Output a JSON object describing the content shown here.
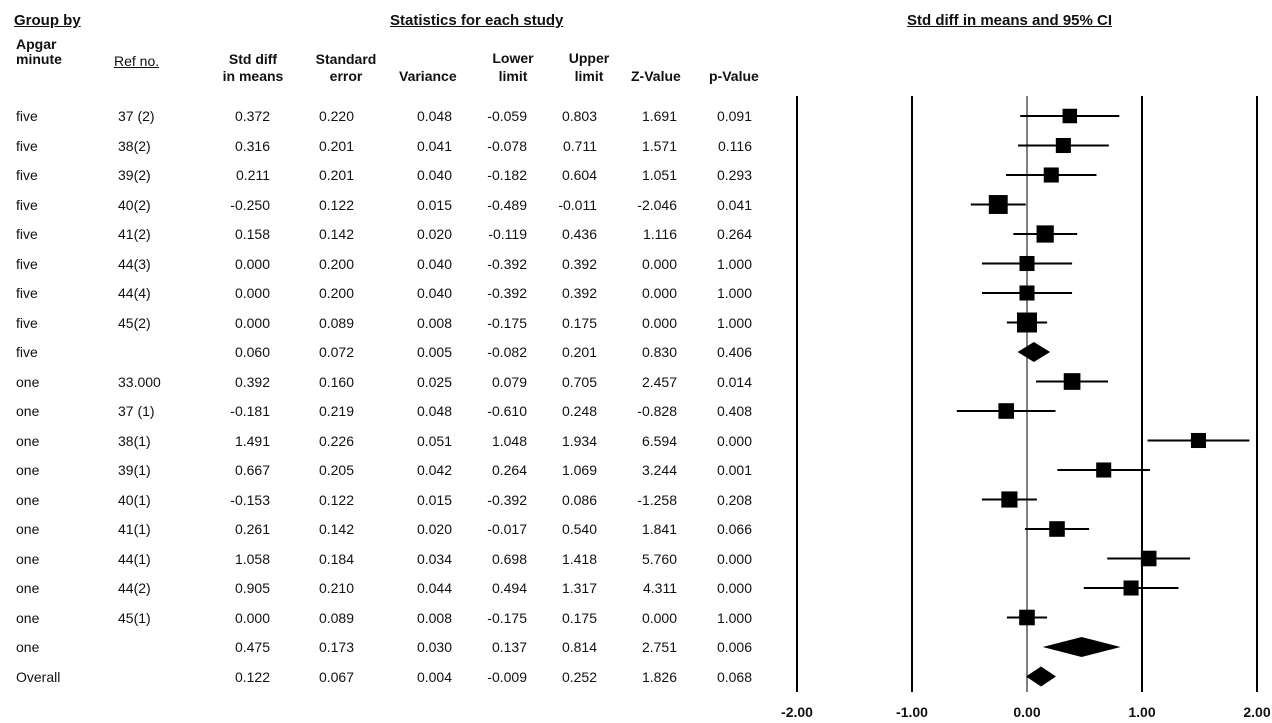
{
  "headers": {
    "group_by": "Group by",
    "stats_title": "Statistics for each study",
    "plot_title": "Std diff in means and 95% CI"
  },
  "columns": {
    "group_l1": "Apgar",
    "group_l2": "minute",
    "ref": "Ref no.",
    "smd_l1": "Std diff",
    "smd_l2": "in means",
    "se_l1": "Standard",
    "se_l2": "error",
    "var": "Variance",
    "lower_l1": "Lower",
    "lower_l2": "limit",
    "upper_l1": "Upper",
    "upper_l2": "limit",
    "z": "Z-Value",
    "p": "p-Value"
  },
  "chart_data": {
    "type": "forest",
    "xlim": [
      -2,
      2
    ],
    "xticks": [
      "-2.00",
      "-1.00",
      "0.00",
      "1.00",
      "2.00"
    ],
    "rows": [
      {
        "group": "five",
        "ref": "37 (2)",
        "smd": "0.372",
        "se": "0.220",
        "var": "0.048",
        "lower": "-0.059",
        "upper": "0.803",
        "z": "1.691",
        "p": "0.091",
        "kind": "study",
        "weight": 0.5
      },
      {
        "group": "five",
        "ref": "38(2)",
        "smd": "0.316",
        "se": "0.201",
        "var": "0.041",
        "lower": "-0.078",
        "upper": "0.711",
        "z": "1.571",
        "p": "0.116",
        "kind": "study",
        "weight": 0.55
      },
      {
        "group": "five",
        "ref": "39(2)",
        "smd": "0.211",
        "se": "0.201",
        "var": "0.040",
        "lower": "-0.182",
        "upper": "0.604",
        "z": "1.051",
        "p": "0.293",
        "kind": "study",
        "weight": 0.55
      },
      {
        "group": "five",
        "ref": "40(2)",
        "smd": "-0.250",
        "se": "0.122",
        "var": "0.015",
        "lower": "-0.489",
        "upper": "-0.011",
        "z": "-2.046",
        "p": "0.041",
        "kind": "study",
        "weight": 0.9
      },
      {
        "group": "five",
        "ref": "41(2)",
        "smd": "0.158",
        "se": "0.142",
        "var": "0.020",
        "lower": "-0.119",
        "upper": "0.436",
        "z": "1.116",
        "p": "0.264",
        "kind": "study",
        "weight": 0.75
      },
      {
        "group": "five",
        "ref": "44(3)",
        "smd": "0.000",
        "se": "0.200",
        "var": "0.040",
        "lower": "-0.392",
        "upper": "0.392",
        "z": "0.000",
        "p": "1.000",
        "kind": "study",
        "weight": 0.55
      },
      {
        "group": "five",
        "ref": "44(4)",
        "smd": "0.000",
        "se": "0.200",
        "var": "0.040",
        "lower": "-0.392",
        "upper": "0.392",
        "z": "0.000",
        "p": "1.000",
        "kind": "study",
        "weight": 0.55
      },
      {
        "group": "five",
        "ref": "45(2)",
        "smd": "0.000",
        "se": "0.089",
        "var": "0.008",
        "lower": "-0.175",
        "upper": "0.175",
        "z": "0.000",
        "p": "1.000",
        "kind": "study",
        "weight": 1.0
      },
      {
        "group": "five",
        "ref": "",
        "smd": "0.060",
        "se": "0.072",
        "var": "0.005",
        "lower": "-0.082",
        "upper": "0.201",
        "z": "0.830",
        "p": "0.406",
        "kind": "summary"
      },
      {
        "group": "one",
        "ref": "33.000",
        "smd": "0.392",
        "se": "0.160",
        "var": "0.025",
        "lower": "0.079",
        "upper": "0.705",
        "z": "2.457",
        "p": "0.014",
        "kind": "study",
        "weight": 0.7
      },
      {
        "group": "one",
        "ref": "37 (1)",
        "smd": "-0.181",
        "se": "0.219",
        "var": "0.048",
        "lower": "-0.610",
        "upper": "0.248",
        "z": "-0.828",
        "p": "0.408",
        "kind": "study",
        "weight": 0.6
      },
      {
        "group": "one",
        "ref": "38(1)",
        "smd": "1.491",
        "se": "0.226",
        "var": "0.051",
        "lower": "1.048",
        "upper": "1.934",
        "z": "6.594",
        "p": "0.000",
        "kind": "study",
        "weight": 0.55
      },
      {
        "group": "one",
        "ref": "39(1)",
        "smd": "0.667",
        "se": "0.205",
        "var": "0.042",
        "lower": "0.264",
        "upper": "1.069",
        "z": "3.244",
        "p": "0.001",
        "kind": "study",
        "weight": 0.55
      },
      {
        "group": "one",
        "ref": "40(1)",
        "smd": "-0.153",
        "se": "0.122",
        "var": "0.015",
        "lower": "-0.392",
        "upper": "0.086",
        "z": "-1.258",
        "p": "0.208",
        "kind": "study",
        "weight": 0.65
      },
      {
        "group": "one",
        "ref": "41(1)",
        "smd": "0.261",
        "se": "0.142",
        "var": "0.020",
        "lower": "-0.017",
        "upper": "0.540",
        "z": "1.841",
        "p": "0.066",
        "kind": "study",
        "weight": 0.6
      },
      {
        "group": "one",
        "ref": "44(1)",
        "smd": "1.058",
        "se": "0.184",
        "var": "0.034",
        "lower": "0.698",
        "upper": "1.418",
        "z": "5.760",
        "p": "0.000",
        "kind": "study",
        "weight": 0.6
      },
      {
        "group": "one",
        "ref": "44(2)",
        "smd": "0.905",
        "se": "0.210",
        "var": "0.044",
        "lower": "0.494",
        "upper": "1.317",
        "z": "4.311",
        "p": "0.000",
        "kind": "study",
        "weight": 0.55
      },
      {
        "group": "one",
        "ref": "45(1)",
        "smd": "0.000",
        "se": "0.089",
        "var": "0.008",
        "lower": "-0.175",
        "upper": "0.175",
        "z": "0.000",
        "p": "1.000",
        "kind": "study",
        "weight": 0.6
      },
      {
        "group": "one",
        "ref": "",
        "smd": "0.475",
        "se": "0.173",
        "var": "0.030",
        "lower": "0.137",
        "upper": "0.814",
        "z": "2.751",
        "p": "0.006",
        "kind": "summary"
      },
      {
        "group": "Overall",
        "ref": "",
        "smd": "0.122",
        "se": "0.067",
        "var": "0.004",
        "lower": "-0.009",
        "upper": "0.252",
        "z": "1.826",
        "p": "0.068",
        "kind": "summary"
      }
    ]
  }
}
